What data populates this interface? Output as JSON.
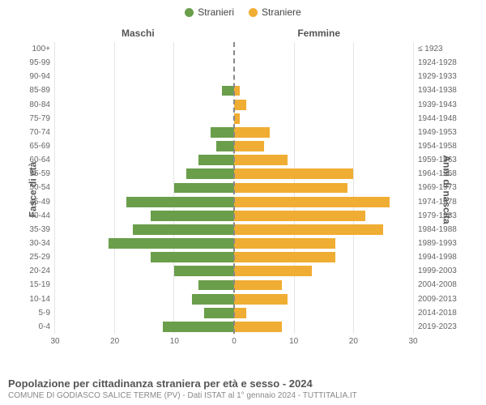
{
  "legend": {
    "male": {
      "label": "Stranieri",
      "color": "#6a9e4b"
    },
    "female": {
      "label": "Straniere",
      "color": "#f0ad33"
    }
  },
  "header": {
    "male_title": "Maschi",
    "female_title": "Femmine",
    "y_left_title": "Fasce di età",
    "y_right_title": "Anni di nascita"
  },
  "chart": {
    "type": "population-pyramid",
    "x_max": 30,
    "x_ticks": [
      30,
      20,
      10,
      0,
      10,
      20,
      30
    ],
    "grid_color": "#e5e5e5",
    "center_line_color": "#888888",
    "background_color": "#ffffff",
    "bar_colors": {
      "male": "#6a9e4b",
      "female": "#f0ad33"
    },
    "rows": [
      {
        "age": "100+",
        "year": "≤ 1923",
        "male": 0,
        "female": 0
      },
      {
        "age": "95-99",
        "year": "1924-1928",
        "male": 0,
        "female": 0
      },
      {
        "age": "90-94",
        "year": "1929-1933",
        "male": 0,
        "female": 0
      },
      {
        "age": "85-89",
        "year": "1934-1938",
        "male": 2,
        "female": 1
      },
      {
        "age": "80-84",
        "year": "1939-1943",
        "male": 0,
        "female": 2
      },
      {
        "age": "75-79",
        "year": "1944-1948",
        "male": 0,
        "female": 1
      },
      {
        "age": "70-74",
        "year": "1949-1953",
        "male": 4,
        "female": 6
      },
      {
        "age": "65-69",
        "year": "1954-1958",
        "male": 3,
        "female": 5
      },
      {
        "age": "60-64",
        "year": "1959-1963",
        "male": 6,
        "female": 9
      },
      {
        "age": "55-59",
        "year": "1964-1968",
        "male": 8,
        "female": 20
      },
      {
        "age": "50-54",
        "year": "1969-1973",
        "male": 10,
        "female": 19
      },
      {
        "age": "45-49",
        "year": "1974-1978",
        "male": 18,
        "female": 26
      },
      {
        "age": "40-44",
        "year": "1979-1983",
        "male": 14,
        "female": 22
      },
      {
        "age": "35-39",
        "year": "1984-1988",
        "male": 17,
        "female": 25
      },
      {
        "age": "30-34",
        "year": "1989-1993",
        "male": 21,
        "female": 17
      },
      {
        "age": "25-29",
        "year": "1994-1998",
        "male": 14,
        "female": 17
      },
      {
        "age": "20-24",
        "year": "1999-2003",
        "male": 10,
        "female": 13
      },
      {
        "age": "15-19",
        "year": "2004-2008",
        "male": 6,
        "female": 8
      },
      {
        "age": "10-14",
        "year": "2009-2013",
        "male": 7,
        "female": 9
      },
      {
        "age": "5-9",
        "year": "2014-2018",
        "male": 5,
        "female": 2
      },
      {
        "age": "0-4",
        "year": "2019-2023",
        "male": 12,
        "female": 8
      }
    ]
  },
  "caption": {
    "title": "Popolazione per cittadinanza straniera per età e sesso - 2024",
    "subtitle": "COMUNE DI GODIASCO SALICE TERME (PV) - Dati ISTAT al 1° gennaio 2024 - TUTTITALIA.IT"
  }
}
